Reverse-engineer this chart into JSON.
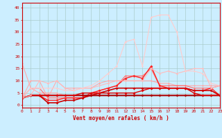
{
  "title": "",
  "xlabel": "Vent moyen/en rafales ( km/h )",
  "xlim": [
    0,
    23
  ],
  "ylim": [
    -1,
    42
  ],
  "background_color": "#cceeff",
  "grid_color": "#aacccc",
  "x": [
    0,
    1,
    2,
    3,
    4,
    5,
    6,
    7,
    8,
    9,
    10,
    11,
    12,
    13,
    14,
    15,
    16,
    17,
    18,
    19,
    20,
    21,
    22,
    23
  ],
  "lines": [
    {
      "y": [
        17,
        7,
        5,
        5,
        5,
        4,
        4,
        4,
        4,
        4,
        4,
        4,
        4,
        4,
        4,
        4,
        4,
        4,
        4,
        4,
        4,
        4,
        4,
        4
      ],
      "color": "#ffaaaa",
      "lw": 0.8,
      "marker": "D",
      "ms": 1.5
    },
    {
      "y": [
        3,
        10,
        10,
        3,
        10,
        7,
        7,
        7,
        7,
        9,
        10,
        10,
        10,
        10,
        10,
        10,
        9,
        9,
        8,
        8,
        8,
        8,
        8,
        8
      ],
      "color": "#ffaaaa",
      "lw": 0.8,
      "marker": "D",
      "ms": 1.5
    },
    {
      "y": [
        3,
        7,
        7,
        3,
        3,
        3,
        3,
        3,
        4,
        6,
        7,
        8,
        12,
        12,
        12,
        15,
        8,
        8,
        8,
        8,
        7,
        7,
        7,
        8
      ],
      "color": "#ff7777",
      "lw": 0.9,
      "marker": "D",
      "ms": 1.5
    },
    {
      "y": [
        3,
        4,
        4,
        2,
        2,
        3,
        3,
        3,
        5,
        6,
        7,
        8,
        11,
        12,
        11,
        16,
        8,
        7,
        7,
        7,
        6,
        6,
        7,
        4
      ],
      "color": "#ff2222",
      "lw": 1.0,
      "marker": "D",
      "ms": 2.0
    },
    {
      "y": [
        3,
        4,
        4,
        1,
        1,
        2,
        2,
        3,
        4,
        5,
        6,
        7,
        7,
        7,
        7,
        7,
        7,
        7,
        7,
        7,
        6,
        6,
        6,
        4
      ],
      "color": "#cc0000",
      "lw": 1.2,
      "marker": "D",
      "ms": 2.0
    },
    {
      "y": [
        3,
        4,
        4,
        4,
        4,
        4,
        4,
        4,
        4,
        4,
        4,
        4,
        4,
        4,
        4,
        4,
        4,
        4,
        4,
        4,
        4,
        4,
        4,
        4
      ],
      "color": "#aa0000",
      "lw": 1.5,
      "marker": "D",
      "ms": 2.0
    },
    {
      "y": [
        3,
        4,
        4,
        4,
        4,
        4,
        4,
        5,
        5,
        5,
        5,
        5,
        5,
        5,
        6,
        7,
        7,
        7,
        7,
        7,
        5,
        4,
        4,
        4
      ],
      "color": "#dd0000",
      "lw": 1.0,
      "marker": "D",
      "ms": 2.0
    },
    {
      "y": [
        3,
        4,
        10,
        9,
        10,
        7,
        6,
        7,
        7,
        8,
        9,
        10,
        10,
        10,
        10,
        15,
        13,
        14,
        13,
        14,
        15,
        15,
        7,
        8
      ],
      "color": "#ffbbbb",
      "lw": 0.8,
      "marker": "D",
      "ms": 1.5
    },
    {
      "y": [
        3,
        7,
        7,
        7,
        7,
        6,
        6,
        7,
        8,
        10,
        13,
        16,
        26,
        27,
        16,
        36,
        37,
        37,
        30,
        14,
        14,
        13,
        9,
        8
      ],
      "color": "#ffcccc",
      "lw": 0.8,
      "marker": "D",
      "ms": 1.5
    }
  ],
  "xtick_labels": [
    "0",
    "1",
    "2",
    "3",
    "4",
    "5",
    "6",
    "7",
    "8",
    "9",
    "10",
    "11",
    "12",
    "13",
    "14",
    "15",
    "16",
    "17",
    "18",
    "19",
    "20",
    "21",
    "22",
    "23"
  ],
  "ytick_vals": [
    0,
    5,
    10,
    15,
    20,
    25,
    30,
    35,
    40
  ],
  "ytick_labels": [
    "0",
    "5",
    "10",
    "15",
    "20",
    "25",
    "30",
    "35",
    "40"
  ],
  "label_color": "#cc0000",
  "tick_color": "#cc0000",
  "axis_color": "#cc0000",
  "xlabel_fontsize": 5.5,
  "tick_fontsize": 4.5
}
